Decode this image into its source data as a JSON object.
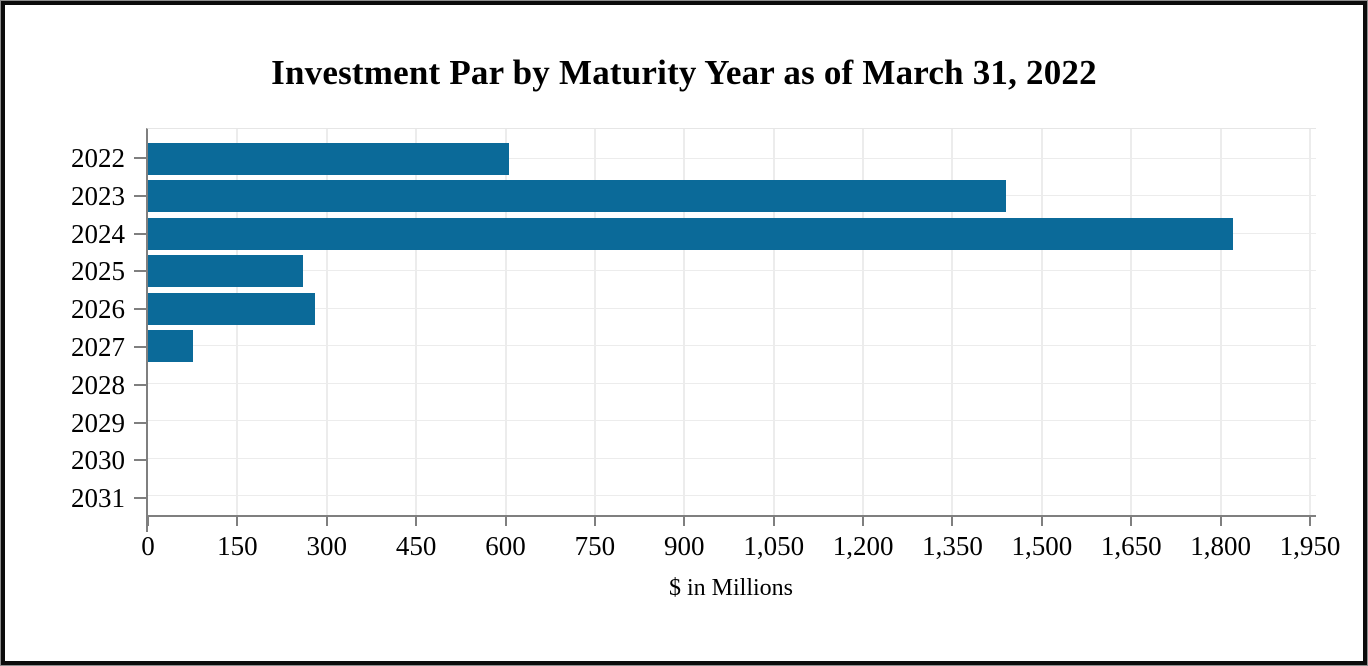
{
  "chart_data": {
    "type": "bar",
    "orientation": "horizontal",
    "title": "Investment Par by Maturity Year as of March 31, 2022",
    "xlabel": "$ in Millions",
    "categories": [
      "2022",
      "2023",
      "2024",
      "2025",
      "2026",
      "2027",
      "2028",
      "2029",
      "2030",
      "2031"
    ],
    "values": [
      605,
      1440,
      1820,
      260,
      280,
      75,
      0,
      0,
      0,
      0
    ],
    "xticks": [
      0,
      150,
      300,
      450,
      600,
      750,
      900,
      1050,
      1200,
      1350,
      1500,
      1650,
      1800,
      1950
    ],
    "xtick_labels": [
      "0",
      "150",
      "300",
      "450",
      "600",
      "750",
      "900",
      "1,050",
      "1,200",
      "1,350",
      "1,500",
      "1,650",
      "1,800",
      "1,950"
    ],
    "xlim": [
      0,
      1962
    ],
    "grid": true,
    "legend": false,
    "bar_color": "#0B6A99",
    "grid_color": "#ececec",
    "axis_color": "#7f7f7f",
    "frame_border_color": "#0c0c0c"
  }
}
